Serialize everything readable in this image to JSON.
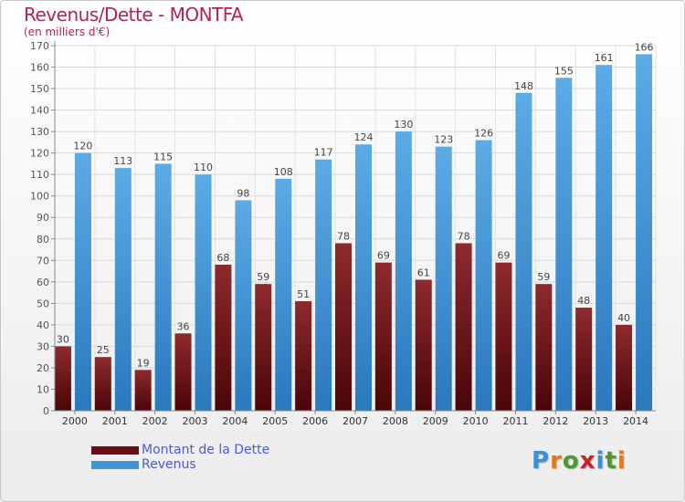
{
  "header": {
    "title": "Revenus/Dette - MONTFA",
    "subtitle": "(en milliers d'€)"
  },
  "colors": {
    "dette": "#7a1420",
    "revenus": "#3f95d8",
    "title": "#b0254a",
    "legend_text": "#4a5bd8"
  },
  "legend": {
    "items": [
      {
        "label": "Montant de la Dette",
        "color": "#6b0e15"
      },
      {
        "label": "Revenus",
        "color": "#3f95d8"
      }
    ]
  },
  "logo": {
    "text": "Proxiti",
    "letter_colors": [
      "#3a8fd8",
      "#e07a1a",
      "#4a9a2a",
      "#c8242a",
      "#3a8fd8",
      "#4a9a2a",
      "#e07a1a"
    ]
  },
  "chart_data": {
    "type": "bar",
    "categories": [
      "2000",
      "2001",
      "2002",
      "2003",
      "2004",
      "2005",
      "2006",
      "2007",
      "2008",
      "2009",
      "2010",
      "2011",
      "2012",
      "2013",
      "2014"
    ],
    "series": [
      {
        "name": "Montant de la Dette",
        "values": [
          30,
          25,
          19,
          36,
          68,
          59,
          51,
          78,
          69,
          61,
          78,
          69,
          59,
          48,
          40
        ]
      },
      {
        "name": "Revenus",
        "values": [
          120,
          113,
          115,
          110,
          98,
          108,
          117,
          124,
          130,
          123,
          126,
          148,
          155,
          161,
          166
        ]
      }
    ],
    "ylim": [
      0,
      170
    ],
    "yticks": [
      0,
      10,
      20,
      30,
      40,
      50,
      60,
      70,
      80,
      90,
      100,
      110,
      120,
      130,
      140,
      150,
      160,
      170
    ],
    "grid": true,
    "legend_position": "bottom-left"
  }
}
